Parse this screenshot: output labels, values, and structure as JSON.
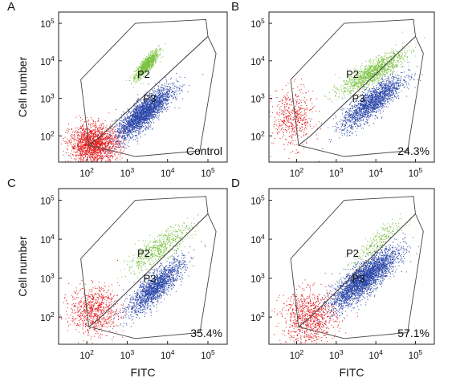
{
  "figure": {
    "xlabel": "FITC",
    "ylabel": "Cell number"
  },
  "colors": {
    "negative": "#e31a1c",
    "p2": "#7cc242",
    "p3": "#2c47a8"
  },
  "chart_data": [
    {
      "type": "scatter",
      "panel": "A",
      "annotation": "Control",
      "gates": [
        "P2",
        "P3"
      ],
      "xlabel": "",
      "ylabel": "Cell number",
      "xscale": "log",
      "yscale": "log",
      "xlim": [
        20,
        300000
      ],
      "ylim": [
        20,
        200000
      ],
      "xticks": [
        100,
        1000,
        10000,
        100000
      ],
      "xtick_labels": [
        "10^2",
        "10^3",
        "10^4",
        "10^5"
      ],
      "yticks": [
        100,
        1000,
        10000,
        100000
      ],
      "ytick_labels": [
        "10^2",
        "10^3",
        "10^4",
        "10^5"
      ],
      "series": [
        {
          "name": "P2",
          "color": "#7cc242",
          "center": [
            3000,
            8000
          ],
          "spread": [
            1.4,
            1.6
          ],
          "count": 900
        },
        {
          "name": "P3",
          "color": "#2c47a8",
          "center": [
            2500,
            400
          ],
          "spread": [
            2.2,
            2.4
          ],
          "count": 2600
        },
        {
          "name": "",
          "color": "#e31a1c",
          "center": [
            150,
            60
          ],
          "spread": [
            2.0,
            1.8
          ],
          "count": 1800
        }
      ]
    },
    {
      "type": "scatter",
      "panel": "B",
      "annotation": "24.3%",
      "gates": [
        "P2",
        "P3"
      ],
      "xlabel": "",
      "ylabel": "",
      "xscale": "log",
      "yscale": "log",
      "xlim": [
        20,
        300000
      ],
      "ylim": [
        20,
        200000
      ],
      "xticks": [
        100,
        1000,
        10000,
        100000
      ],
      "xtick_labels": [
        "10^2",
        "10^3",
        "10^4",
        "10^5"
      ],
      "yticks": [
        100,
        1000,
        10000,
        100000
      ],
      "ytick_labels": [
        "10^2",
        "10^3",
        "10^4",
        "10^5"
      ],
      "series": [
        {
          "name": "P2",
          "color": "#7cc242",
          "center": [
            8000,
            5000
          ],
          "spread": [
            2.5,
            2.0
          ],
          "count": 1200
        },
        {
          "name": "P3",
          "color": "#2c47a8",
          "center": [
            8000,
            800
          ],
          "spread": [
            2.4,
            2.4
          ],
          "count": 1800
        },
        {
          "name": "",
          "color": "#e31a1c",
          "center": [
            80,
            300
          ],
          "spread": [
            1.8,
            2.4
          ],
          "count": 500
        }
      ]
    },
    {
      "type": "scatter",
      "panel": "C",
      "annotation": "35.4%",
      "gates": [
        "P2",
        "P3"
      ],
      "xlabel": "FITC",
      "ylabel": "Cell number",
      "xscale": "log",
      "yscale": "log",
      "xlim": [
        20,
        300000
      ],
      "ylim": [
        20,
        200000
      ],
      "xticks": [
        100,
        1000,
        10000,
        100000
      ],
      "xtick_labels": [
        "10^2",
        "10^3",
        "10^4",
        "10^5"
      ],
      "yticks": [
        100,
        1000,
        10000,
        100000
      ],
      "ytick_labels": [
        "10^2",
        "10^3",
        "10^4",
        "10^5"
      ],
      "series": [
        {
          "name": "P2",
          "color": "#7cc242",
          "center": [
            6000,
            6000
          ],
          "spread": [
            2.5,
            2.2
          ],
          "count": 600
        },
        {
          "name": "P3",
          "color": "#2c47a8",
          "center": [
            5000,
            600
          ],
          "spread": [
            2.2,
            2.4
          ],
          "count": 1700
        },
        {
          "name": "",
          "color": "#e31a1c",
          "center": [
            150,
            150
          ],
          "spread": [
            2.0,
            2.0
          ],
          "count": 800
        }
      ]
    },
    {
      "type": "scatter",
      "panel": "D",
      "annotation": "57.1%",
      "gates": [
        "P2",
        "P3"
      ],
      "xlabel": "FITC",
      "ylabel": "",
      "xscale": "log",
      "yscale": "log",
      "xlim": [
        20,
        300000
      ],
      "ylim": [
        20,
        200000
      ],
      "xticks": [
        100,
        1000,
        10000,
        100000
      ],
      "xtick_labels": [
        "10^2",
        "10^3",
        "10^4",
        "10^5"
      ],
      "yticks": [
        100,
        1000,
        10000,
        100000
      ],
      "ytick_labels": [
        "10^2",
        "10^3",
        "10^4",
        "10^5"
      ],
      "series": [
        {
          "name": "P2",
          "color": "#7cc242",
          "center": [
            10000,
            8000
          ],
          "spread": [
            2.0,
            2.0
          ],
          "count": 250
        },
        {
          "name": "P3",
          "color": "#2c47a8",
          "center": [
            5000,
            1000
          ],
          "spread": [
            2.6,
            2.6
          ],
          "count": 3000
        },
        {
          "name": "",
          "color": "#e31a1c",
          "center": [
            200,
            100
          ],
          "spread": [
            2.2,
            2.2
          ],
          "count": 900
        }
      ]
    }
  ]
}
